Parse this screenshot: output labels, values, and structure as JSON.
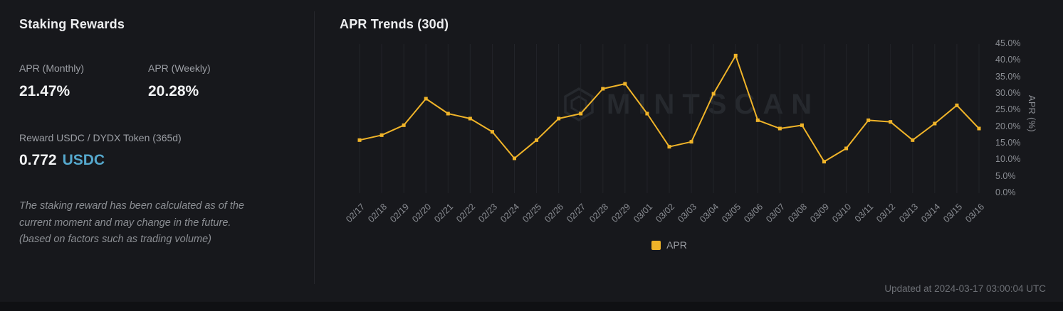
{
  "left_panel": {
    "title": "Staking Rewards",
    "apr_monthly_label": "APR (Monthly)",
    "apr_monthly_value": "21.47%",
    "apr_weekly_label": "APR (Weekly)",
    "apr_weekly_value": "20.28%",
    "reward_label": "Reward USDC / DYDX Token (365d)",
    "reward_value": "0.772",
    "reward_unit": "USDC",
    "disclaimer_lines": [
      "The staking reward has been calculated as of the",
      "current moment and may change in the future.",
      "(based on factors such as trading volume)"
    ]
  },
  "chart_panel": {
    "title": "APR Trends (30d)",
    "watermark": "MINTSCAN",
    "y_axis_title": "APR (%)",
    "legend_label": "APR",
    "updated_text": "Updated at 2024-03-17 03:00:04 UTC"
  },
  "colors": {
    "background": "#17181c",
    "footer": "#0f1013",
    "line": "#f0b429",
    "accent_blue": "#55a8cd",
    "grid": "#222429",
    "label_gray": "#8b8e94",
    "text_white": "#f2f3f4"
  },
  "chart_data": {
    "type": "line",
    "title": "APR Trends (30d)",
    "x": [
      "02/17",
      "02/18",
      "02/19",
      "02/20",
      "02/21",
      "02/22",
      "02/23",
      "02/24",
      "02/25",
      "02/26",
      "02/27",
      "02/28",
      "02/29",
      "03/01",
      "03/02",
      "03/03",
      "03/04",
      "03/05",
      "03/06",
      "03/07",
      "03/08",
      "03/09",
      "03/10",
      "03/11",
      "03/12",
      "03/13",
      "03/14",
      "03/15",
      "03/16"
    ],
    "series": [
      {
        "name": "APR",
        "values": [
          16,
          17.5,
          20.5,
          28.5,
          24,
          22.5,
          18.5,
          10.5,
          16,
          22.5,
          24,
          31.5,
          33,
          24,
          14,
          15.5,
          30,
          41.5,
          22,
          19.5,
          20.5,
          9.5,
          13.5,
          22,
          21.5,
          16,
          21,
          26.5,
          19.5
        ]
      }
    ],
    "xlabel": "",
    "ylabel": "APR (%)",
    "ylim": [
      0,
      45
    ],
    "y_ticks": [
      {
        "label": "45.0%",
        "value": 45
      },
      {
        "label": "40.0%",
        "value": 40
      },
      {
        "label": "35.0%",
        "value": 35
      },
      {
        "label": "30.0%",
        "value": 30
      },
      {
        "label": "25.0%",
        "value": 25
      },
      {
        "label": "20.0%",
        "value": 20
      },
      {
        "label": "15.0%",
        "value": 15
      },
      {
        "label": "10.0%",
        "value": 10
      },
      {
        "label": "5.0%",
        "value": 5
      },
      {
        "label": "0.0%",
        "value": 0
      }
    ],
    "grid": true,
    "legend_position": "bottom",
    "line_color": "#f0b429"
  }
}
